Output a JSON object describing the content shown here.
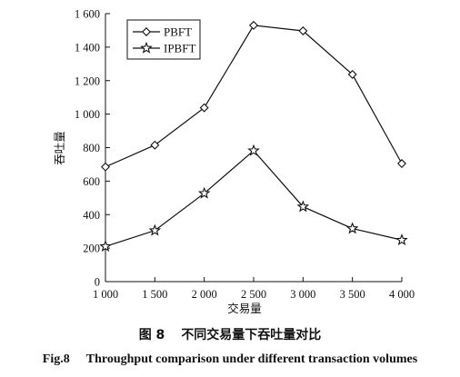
{
  "chart_data": {
    "type": "line",
    "x": [
      1000,
      1500,
      2000,
      2500,
      3000,
      3500,
      4000
    ],
    "x_tick_labels": [
      "1 000",
      "1 500",
      "2 000",
      "2 500",
      "3 000",
      "3 500",
      "4 000"
    ],
    "y_ticks": [
      0,
      200,
      400,
      600,
      800,
      1000,
      1200,
      1400,
      1600
    ],
    "y_tick_labels": [
      "0",
      "200",
      "400",
      "600",
      "800",
      "1 000",
      "1 200",
      "1 400",
      "1 600"
    ],
    "xlim": [
      1000,
      4000
    ],
    "ylim": [
      0,
      1600
    ],
    "xlabel": "交易量",
    "ylabel": "吞吐量",
    "grid": false,
    "legend_position": "top-left",
    "series": [
      {
        "name": "PBFT",
        "marker": "diamond",
        "values": [
          685,
          815,
          1038,
          1530,
          1497,
          1237,
          705
        ]
      },
      {
        "name": "IPBFT",
        "marker": "star",
        "values": [
          210,
          305,
          527,
          782,
          447,
          317,
          248
        ]
      }
    ]
  },
  "caption": {
    "cn_number": "图 8",
    "cn_text": "不同交易量下吞吐量对比",
    "en_number": "Fig.8",
    "en_text": "Throughput comparison under different transaction volumes"
  }
}
